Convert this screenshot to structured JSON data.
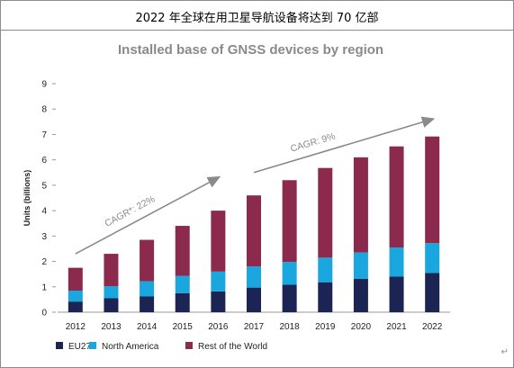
{
  "caption": "2022 年全球在用卫星导航设备将达到 70 亿部",
  "paragraph_mark": "↵",
  "colors": {
    "eu27": "#1b2452",
    "north_america": "#1aa6de",
    "rest_of_world": "#8c2a4d",
    "arrow": "#8a8a8a"
  },
  "chart_data": {
    "type": "bar",
    "stacked": true,
    "title": "Installed base of GNSS devices by region",
    "ylabel": "Units (billions)",
    "xlabel": "",
    "ylim": [
      0,
      9
    ],
    "yticks": [
      "0",
      "1",
      "2",
      "3",
      "4",
      "5",
      "6",
      "7",
      "8",
      "9"
    ],
    "categories": [
      "2012",
      "2013",
      "2014",
      "2015",
      "2016",
      "2017",
      "2018",
      "2019",
      "2020",
      "2021",
      "2022"
    ],
    "series": [
      {
        "name": "EU27",
        "values": [
          0.42,
          0.55,
          0.62,
          0.75,
          0.82,
          0.97,
          1.08,
          1.18,
          1.32,
          1.4,
          1.55
        ]
      },
      {
        "name": "North America",
        "values": [
          0.43,
          0.47,
          0.6,
          0.68,
          0.78,
          0.83,
          0.9,
          0.97,
          1.03,
          1.15,
          1.17
        ]
      },
      {
        "name": "Rest of the World",
        "values": [
          0.9,
          1.28,
          1.63,
          1.97,
          2.4,
          2.8,
          3.22,
          3.53,
          3.75,
          3.98,
          4.2
        ]
      }
    ],
    "annotations": [
      {
        "text": "CAGR*: 22%",
        "from": [
          "2012",
          2.3
        ],
        "to": [
          "2016",
          5.3
        ]
      },
      {
        "text": "CAGR: 9%",
        "from": [
          "2017",
          5.5
        ],
        "to": [
          "2022",
          7.6
        ]
      }
    ],
    "legend_position": "bottom-left",
    "grid": false
  }
}
